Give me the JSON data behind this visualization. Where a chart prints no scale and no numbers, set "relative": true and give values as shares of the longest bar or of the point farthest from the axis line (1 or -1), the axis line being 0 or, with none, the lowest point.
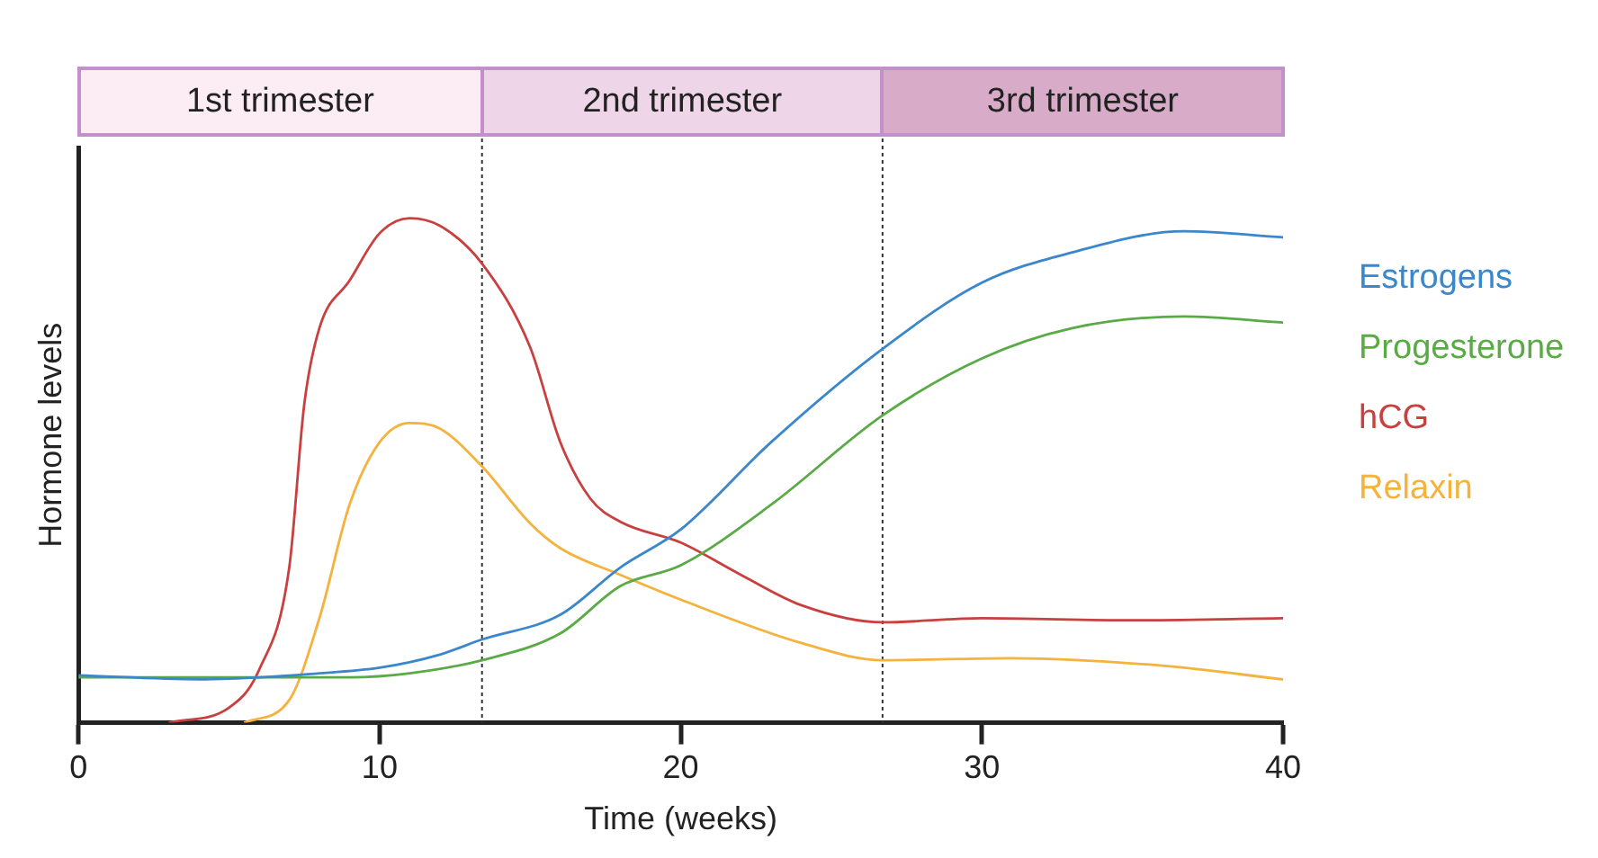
{
  "chart_data": {
    "type": "line",
    "relative": true,
    "xlabel": "Time (weeks)",
    "ylabel": "Hormone levels",
    "xlim": [
      0,
      40
    ],
    "xticks": [
      0,
      10,
      20,
      30,
      40
    ],
    "grid": false,
    "legend": "right",
    "marker": "none",
    "line_style": "solid",
    "series": [
      {
        "name": "Estrogens",
        "color": "#3a87cc",
        "x": [
          0,
          4,
          8,
          10,
          12,
          13.4,
          16,
          18,
          20,
          23,
          26.7,
          30,
          33,
          36.7,
          40
        ],
        "values": [
          0.094,
          0.086,
          0.098,
          0.109,
          0.135,
          0.165,
          0.214,
          0.308,
          0.383,
          0.556,
          0.741,
          0.872,
          0.932,
          0.974,
          0.962
        ]
      },
      {
        "name": "Progesterone",
        "color": "#5aaa46",
        "x": [
          0,
          6,
          9,
          11,
          13.4,
          16,
          18,
          20,
          23,
          26.7,
          30,
          33,
          36.7,
          40
        ],
        "values": [
          0.09,
          0.09,
          0.09,
          0.098,
          0.124,
          0.177,
          0.271,
          0.312,
          0.432,
          0.609,
          0.722,
          0.782,
          0.805,
          0.793
        ]
      },
      {
        "name": "hCG",
        "color": "#c8403f",
        "x": [
          3,
          5,
          6,
          7,
          7.5,
          8,
          9,
          10,
          11,
          12,
          13.4,
          15,
          16,
          17,
          18,
          20,
          22,
          24,
          26.7,
          30,
          35,
          40
        ],
        "values": [
          0,
          0.03,
          0.105,
          0.308,
          0.632,
          0.782,
          0.876,
          0.97,
          1,
          0.985,
          0.91,
          0.744,
          0.556,
          0.444,
          0.398,
          0.357,
          0.293,
          0.233,
          0.199,
          0.207,
          0.203,
          0.207
        ]
      },
      {
        "name": "Relaxin",
        "color": "#f5b23c",
        "x": [
          5.5,
          7,
          8,
          9,
          10,
          11,
          12,
          13.4,
          15,
          16,
          18,
          20,
          24,
          26.7,
          31,
          36,
          40
        ],
        "values": [
          0,
          0.045,
          0.207,
          0.432,
          0.556,
          0.594,
          0.583,
          0.508,
          0.395,
          0.346,
          0.293,
          0.244,
          0.158,
          0.124,
          0.128,
          0.113,
          0.086
        ]
      }
    ],
    "ref_lines": [
      {
        "axis": "x",
        "value": 13.4,
        "color": "#333333",
        "line_style": "dotted"
      },
      {
        "axis": "x",
        "value": 26.7,
        "color": "#333333",
        "line_style": "dotted"
      }
    ],
    "annotations": [
      "1st trimester",
      "2nd trimester",
      "3rd trimester"
    ]
  }
}
